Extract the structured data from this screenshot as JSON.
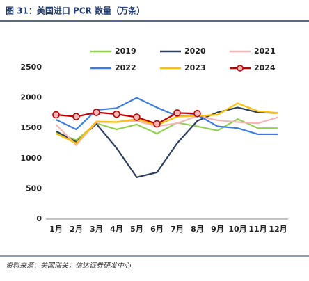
{
  "chart_data": {
    "type": "line",
    "title": "图 31：美国进口 PCR 数量（万条）",
    "source": "资料来源：美国海关，信达证券研发中心",
    "categories": [
      "1月",
      "2月",
      "3月",
      "4月",
      "5月",
      "6月",
      "7月",
      "8月",
      "9月",
      "10月",
      "11月",
      "12月"
    ],
    "series": [
      {
        "name": "2019",
        "color": "#92d050",
        "values": [
          1430,
          1300,
          1580,
          1480,
          1560,
          1410,
          1590,
          1530,
          1460,
          1650,
          1500,
          1500
        ]
      },
      {
        "name": "2020",
        "color": "#2f3f5f",
        "values": [
          1450,
          1270,
          1570,
          1170,
          690,
          770,
          1250,
          1620,
          1760,
          1840,
          1760,
          1750
        ]
      },
      {
        "name": "2021",
        "color": "#f4b6b6",
        "values": [
          1560,
          1220,
          1600,
          1600,
          1620,
          1530,
          1580,
          1700,
          1630,
          1600,
          1580,
          1680
        ]
      },
      {
        "name": "2022",
        "color": "#3b7de0",
        "values": [
          1640,
          1480,
          1800,
          1830,
          2000,
          1840,
          1700,
          1720,
          1530,
          1500,
          1400,
          1400
        ]
      },
      {
        "name": "2023",
        "color": "#ffc000",
        "values": [
          1410,
          1250,
          1610,
          1600,
          1650,
          1550,
          1690,
          1700,
          1720,
          1910,
          1780,
          1750
        ]
      },
      {
        "name": "2024",
        "color": "#c00000",
        "markers": true,
        "values": [
          1720,
          1690,
          1760,
          1730,
          1680,
          1570,
          1750,
          1740,
          null,
          null,
          null,
          null
        ]
      }
    ],
    "ylim": [
      0,
      2500
    ],
    "yticks": [
      0,
      500,
      1000,
      1500,
      2000,
      2500
    ],
    "legend": "top"
  }
}
